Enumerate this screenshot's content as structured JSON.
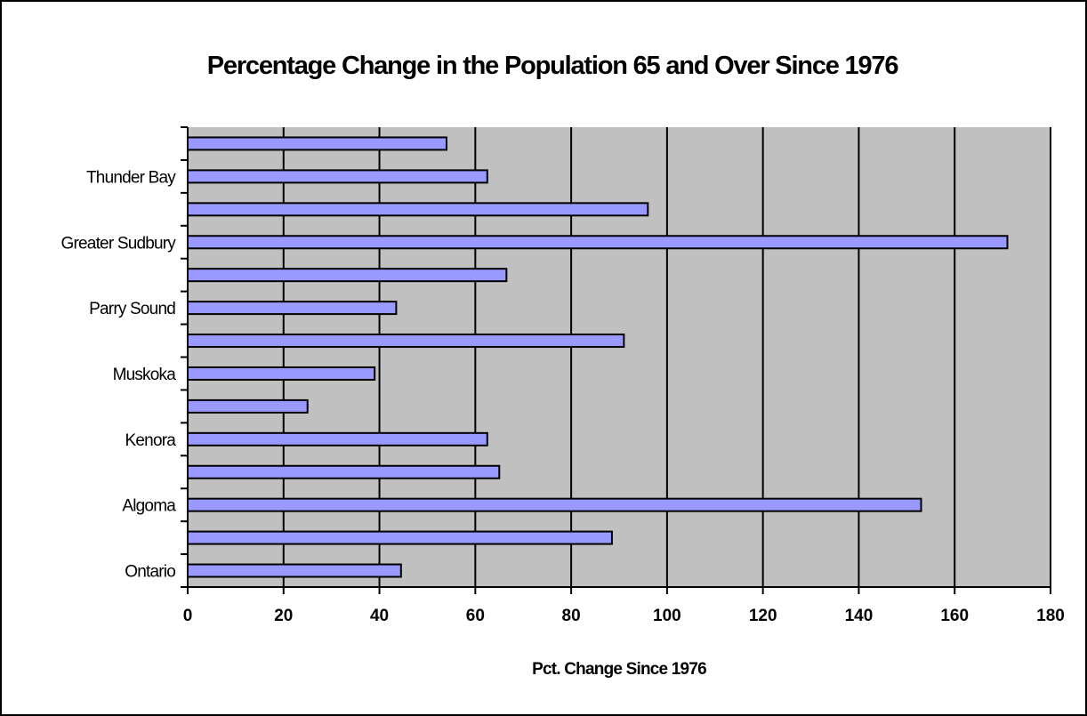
{
  "chart_data": {
    "type": "bar",
    "orientation": "horizontal",
    "title": "Percentage Change in the Population 65 and Over Since 1976",
    "xlabel": "Pct. Change Since 1976",
    "ylabel": "",
    "xlim": [
      0,
      180
    ],
    "xticks": [
      0,
      20,
      40,
      60,
      80,
      100,
      120,
      140,
      160,
      180
    ],
    "grid": true,
    "legend": "none",
    "categories": [
      "Ontario",
      "",
      "Algoma",
      "",
      "Kenora",
      "",
      "Muskoka",
      "",
      "Parry Sound",
      "",
      "Greater Sudbury",
      "",
      "Thunder Bay",
      ""
    ],
    "values": [
      44.5,
      88.5,
      153,
      65,
      62.5,
      25,
      39,
      91,
      43.5,
      66.5,
      171,
      96,
      62.5,
      54
    ],
    "colors": {
      "bar_fill": "#9999ff",
      "bar_stroke": "#000000",
      "plot_background": "#c0c0c0",
      "gridline": "#000000"
    }
  }
}
